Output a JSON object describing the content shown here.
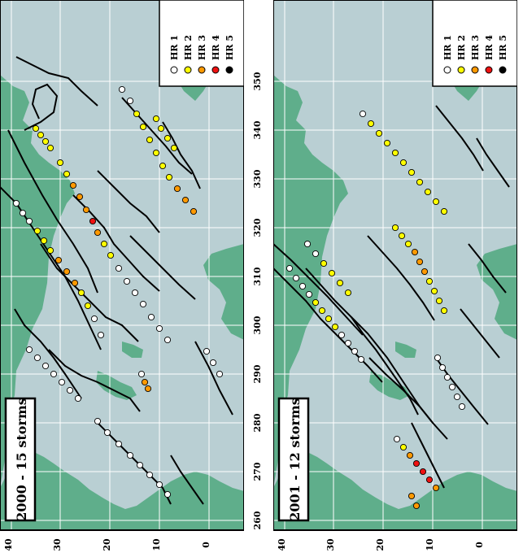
{
  "colors": {
    "ocean": "#b9cfd3",
    "land": "#5fae8b",
    "grid": "#ffffff",
    "track": "#000000",
    "hr1": "#ffffff",
    "hr2": "#ffff00",
    "hr3": "#ff9900",
    "hr4": "#ee1111",
    "hr5": "#000000"
  },
  "axes": {
    "lat_ticks": [
      "40",
      "30",
      "20",
      "10",
      "0"
    ],
    "lon_ticks": [
      "260",
      "270",
      "280",
      "290",
      "300",
      "310",
      "320",
      "330",
      "340",
      "350"
    ]
  },
  "legend": [
    {
      "label": "HR 1",
      "icon": "white-dot"
    },
    {
      "label": "HR 2",
      "icon": "yellow-dot"
    },
    {
      "label": "HR 3",
      "icon": "orange-dot"
    },
    {
      "label": "HR 4",
      "icon": "red-dot"
    },
    {
      "label": "HR 5",
      "icon": "black-dot"
    }
  ],
  "panels": [
    {
      "title": "2000 - 15 storms"
    },
    {
      "title": "2001 - 12 storms"
    }
  ]
}
